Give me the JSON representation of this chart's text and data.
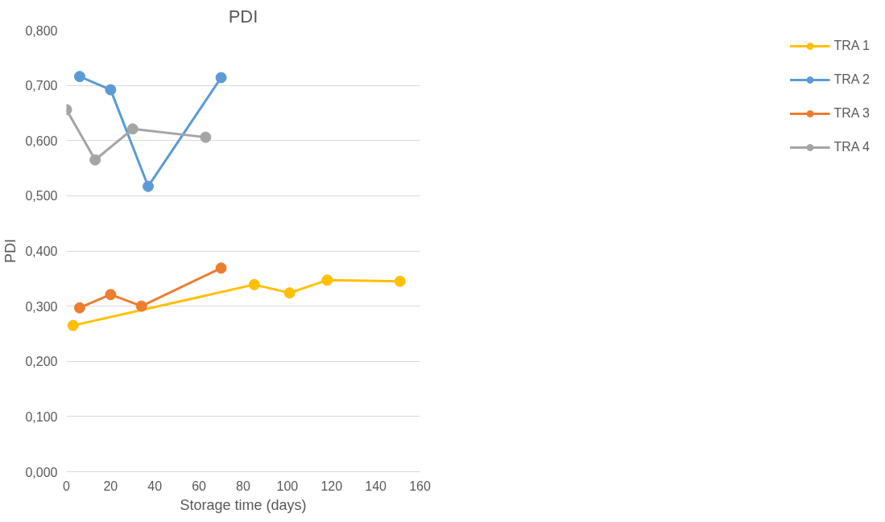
{
  "chart_data": {
    "type": "line",
    "title": "PDI",
    "xlabel": "Storage time (days)",
    "ylabel": "PDI",
    "xlim": [
      0,
      160
    ],
    "xticks": [
      0,
      20,
      40,
      60,
      80,
      100,
      120,
      140,
      160
    ],
    "ylim": [
      0,
      0.8
    ],
    "yticks": [
      {
        "value": 0,
        "label": "0,000"
      },
      {
        "value": 0.1,
        "label": "0,100"
      },
      {
        "value": 0.2,
        "label": "0,200"
      },
      {
        "value": 0.3,
        "label": "0,300"
      },
      {
        "value": 0.4,
        "label": "0,400"
      },
      {
        "value": 0.5,
        "label": "0,500"
      },
      {
        "value": 0.6,
        "label": "0,600"
      },
      {
        "value": 0.7,
        "label": "0,700"
      },
      {
        "value": 0.8,
        "label": "0,800"
      }
    ],
    "grid": "y",
    "legend": "right",
    "marker": "circle",
    "line_style": "solid",
    "series": [
      {
        "name": "TRA 1",
        "color": "#ffc000",
        "x": [
          3,
          85,
          101,
          118,
          151
        ],
        "values": [
          0.265,
          0.339,
          0.324,
          0.347,
          0.345
        ]
      },
      {
        "name": "TRA 2",
        "color": "#5b9bd5",
        "x": [
          6,
          20,
          37,
          70
        ],
        "values": [
          0.716,
          0.692,
          0.517,
          0.714
        ]
      },
      {
        "name": "TRA 3",
        "color": "#ed7d31",
        "x": [
          6,
          20,
          34,
          70
        ],
        "values": [
          0.297,
          0.321,
          0.3,
          0.369
        ]
      },
      {
        "name": "TRA 4",
        "color": "#a5a5a5",
        "x": [
          0,
          13,
          30,
          63
        ],
        "values": [
          0.656,
          0.565,
          0.621,
          0.606
        ]
      }
    ]
  }
}
